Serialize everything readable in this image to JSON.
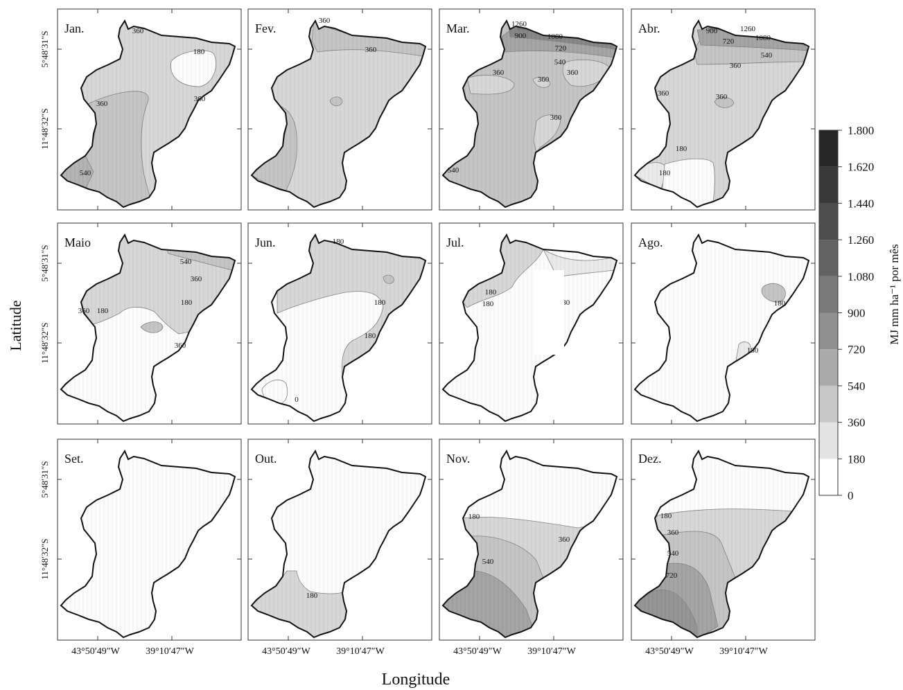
{
  "figure": {
    "xlabel": "Longitude",
    "ylabel": "Latitude",
    "lat_ticks": [
      "5°48′31″S",
      "11°48′32″S"
    ],
    "lon_ticks": [
      "43°50′49″W",
      "39°10′47″W"
    ]
  },
  "legend": {
    "unit_label": "MJ mm ha⁻¹ por mês",
    "levels": [
      "0",
      "180",
      "360",
      "540",
      "720",
      "900",
      "1.080",
      "1.260",
      "1.440",
      "1.620",
      "1.800"
    ],
    "colors": [
      "#ffffff",
      "#e3e3e3",
      "#c7c7c7",
      "#ababab",
      "#919191",
      "#7a7a7a",
      "#636363",
      "#4d4d4d",
      "#393939",
      "#262626"
    ]
  },
  "panels": [
    {
      "month": "Jan.",
      "contours": [
        "360",
        "180",
        "360",
        "360",
        "540"
      ]
    },
    {
      "month": "Fev.",
      "contours": [
        "360",
        "360"
      ]
    },
    {
      "month": "Mar.",
      "contours": [
        "1260",
        "900",
        "1080",
        "720",
        "540",
        "360",
        "360",
        "360",
        "360",
        "540"
      ]
    },
    {
      "month": "Abr.",
      "contours": [
        "900",
        "1260",
        "720",
        "1080",
        "540",
        "360",
        "360",
        "360",
        "180",
        "180"
      ]
    },
    {
      "month": "Maio",
      "contours": [
        "540",
        "360",
        "360",
        "180",
        "180",
        "360"
      ]
    },
    {
      "month": "Jun.",
      "contours": [
        "180",
        "180",
        "180",
        "0"
      ]
    },
    {
      "month": "Jul.",
      "contours": [
        "180",
        "180",
        "180",
        "180"
      ]
    },
    {
      "month": "Ago.",
      "contours": [
        "180",
        "180"
      ]
    },
    {
      "month": "Set.",
      "contours": []
    },
    {
      "month": "Out.",
      "contours": [
        "180"
      ]
    },
    {
      "month": "Nov.",
      "contours": [
        "360",
        "180",
        "540"
      ]
    },
    {
      "month": "Dez.",
      "contours": [
        "180",
        "360",
        "540",
        "720"
      ]
    }
  ]
}
